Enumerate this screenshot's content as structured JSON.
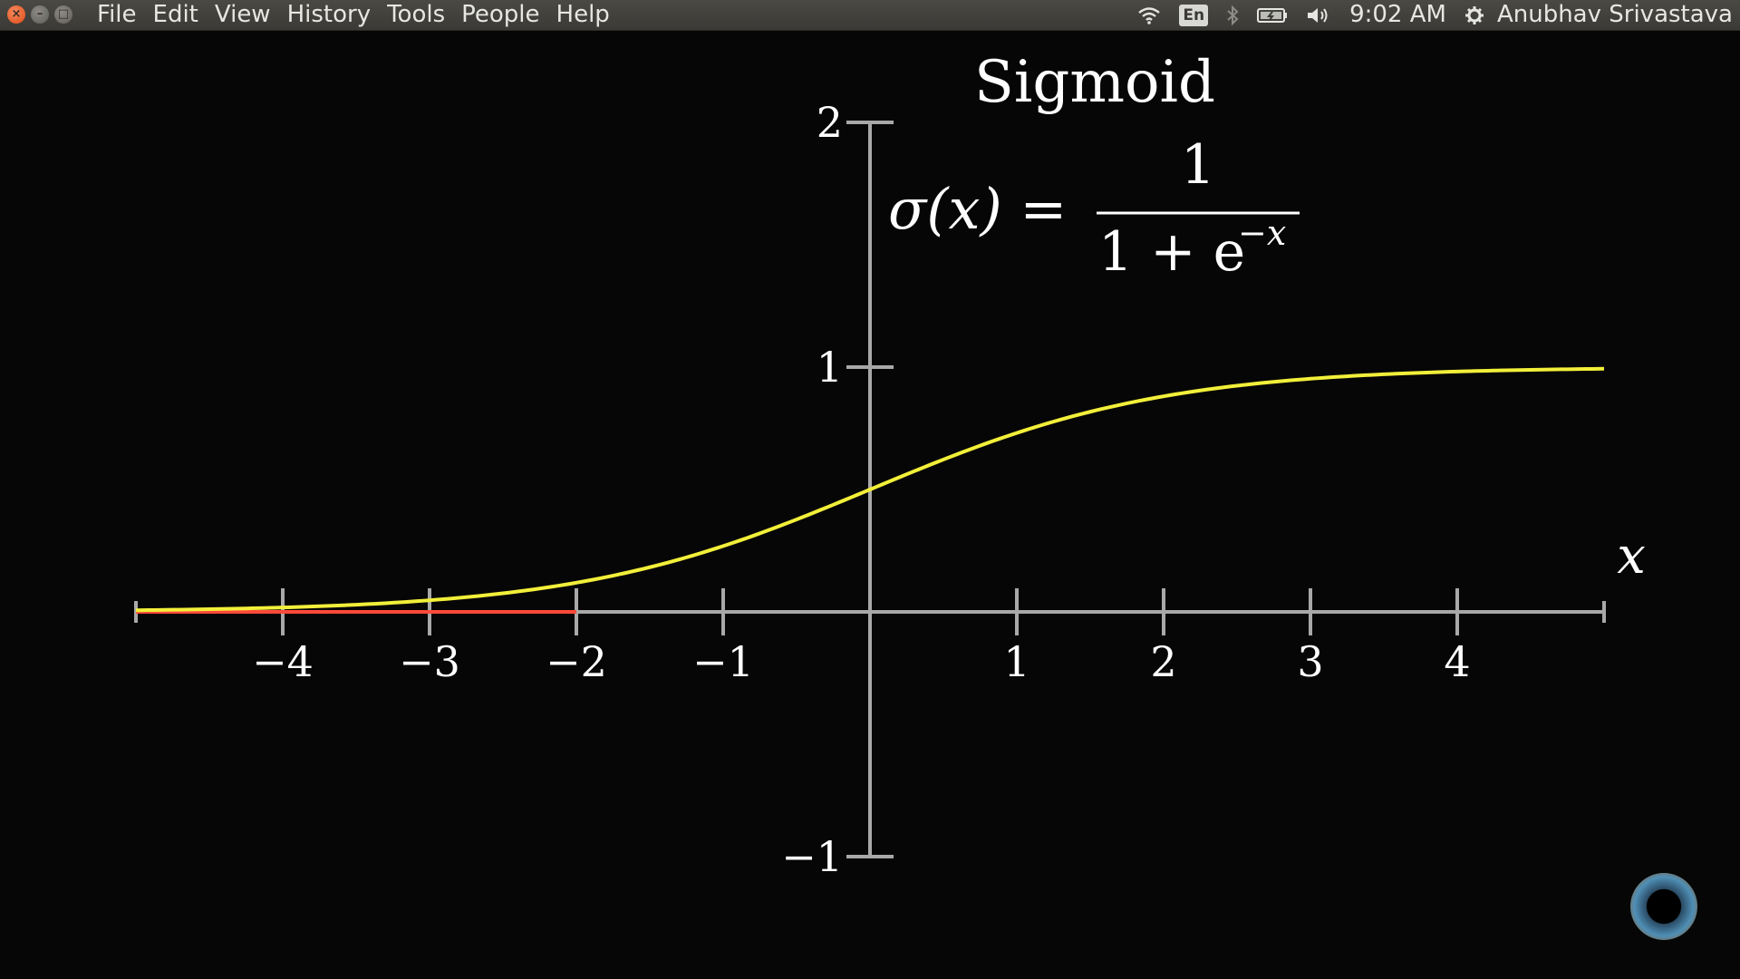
{
  "menubar": {
    "menu_items": [
      "File",
      "Edit",
      "View",
      "History",
      "Tools",
      "People",
      "Help"
    ],
    "language": "En",
    "clock": "9:02 AM",
    "user": "Anubhav Srivastava"
  },
  "chart_data": {
    "type": "line",
    "title": "Sigmoid",
    "formula": {
      "lhs": "σ(x) =",
      "numerator": "1",
      "denominator": "1 + e",
      "exponent": "−x"
    },
    "xlabel": "x",
    "xlim": [
      -5,
      5
    ],
    "ylim": [
      -1,
      2
    ],
    "x_ticks": [
      -4,
      -3,
      -2,
      -1,
      1,
      2,
      3,
      4
    ],
    "x_tick_labels": [
      "−4",
      "−3",
      "−2",
      "−1",
      "1",
      "2",
      "3",
      "4"
    ],
    "y_ticks": [
      2,
      1,
      -1
    ],
    "y_tick_labels": [
      "2",
      "1",
      "−1"
    ],
    "series": [
      {
        "color": "#f2ef3a",
        "function": "sigmoid",
        "x_range": [
          -5,
          5
        ]
      }
    ],
    "highlight": {
      "color": "#ff4a3a",
      "x_range": [
        -5,
        -2
      ]
    },
    "colors": {
      "axis": "#a8a8a8",
      "background": "#060606",
      "text": "#ffffff"
    }
  }
}
